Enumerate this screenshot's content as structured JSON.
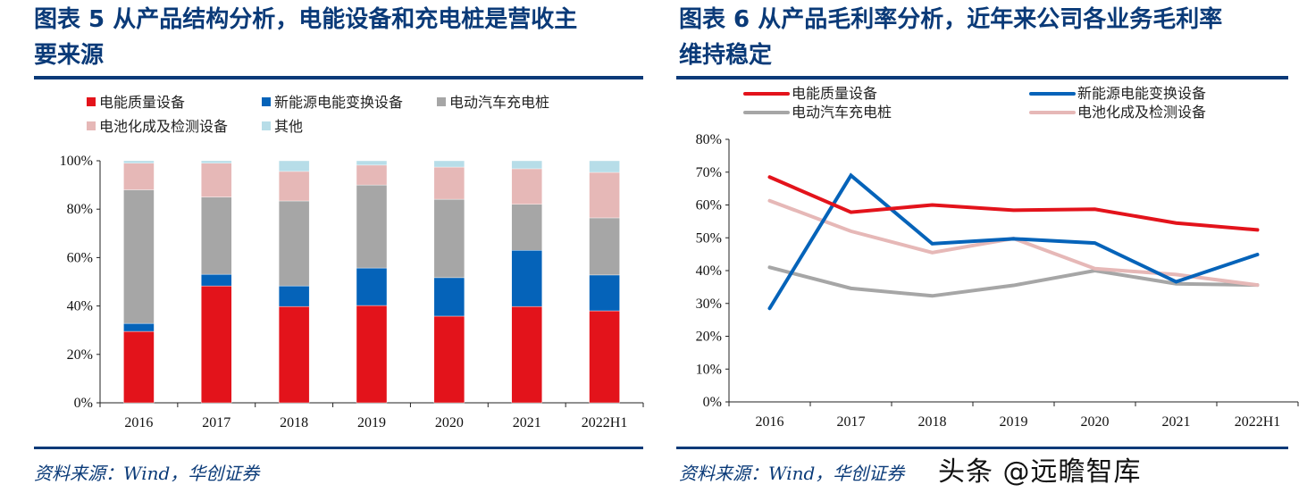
{
  "left": {
    "title_line1": "图表 5   从产品结构分析，电能设备和充电桩是营收主",
    "title_line2": "要来源",
    "source": "资料来源：Wind，华创证券"
  },
  "right": {
    "title_line1": "图表 6   从产品毛利率分析，近年来公司各业务毛利率",
    "title_line2": "维持稳定",
    "source": "资料来源：Wind，华创证券"
  },
  "watermark": "头条 @远瞻智库",
  "chart_data": [
    {
      "type": "bar",
      "stacked": true,
      "title": "从产品结构分析，电能设备和充电桩是营收主要来源",
      "categories": [
        "2016",
        "2017",
        "2018",
        "2019",
        "2020",
        "2021",
        "2022H1"
      ],
      "ylim": [
        0,
        100
      ],
      "yticks": [
        "0%",
        "20%",
        "40%",
        "60%",
        "80%",
        "100%"
      ],
      "legend_position": "top-left",
      "series": [
        {
          "name": "电能质量设备",
          "color": "#e3131b",
          "values": [
            29.5,
            48.3,
            39.8,
            40.2,
            35.8,
            39.8,
            38.0
          ]
        },
        {
          "name": "新能源电能变换设备",
          "color": "#0563b9",
          "values": [
            3.3,
            4.8,
            8.5,
            15.5,
            15.9,
            23.2,
            14.8
          ]
        },
        {
          "name": "电动汽车充电桩",
          "color": "#a6a6a6",
          "values": [
            55.2,
            31.9,
            35.1,
            34.3,
            32.4,
            19.0,
            23.6
          ]
        },
        {
          "name": "电池化成及检测设备",
          "color": "#e6b8b7",
          "values": [
            11.0,
            14.0,
            12.2,
            8.2,
            13.3,
            14.7,
            18.8
          ]
        },
        {
          "name": "其他",
          "color": "#b7dde8",
          "values": [
            1.0,
            1.0,
            4.4,
            1.8,
            2.6,
            3.3,
            4.8
          ]
        }
      ]
    },
    {
      "type": "line",
      "title": "从产品毛利率分析，近年来公司各业务毛利率维持稳定",
      "categories": [
        "2016",
        "2017",
        "2018",
        "2019",
        "2020",
        "2021",
        "2022H1"
      ],
      "ylim": [
        0,
        80
      ],
      "yticks": [
        "0%",
        "10%",
        "20%",
        "30%",
        "40%",
        "50%",
        "60%",
        "70%",
        "80%"
      ],
      "legend_position": "top",
      "series": [
        {
          "name": "电能质量设备",
          "color": "#e3131b",
          "values": [
            68.5,
            57.8,
            60.0,
            58.4,
            58.7,
            54.5,
            52.4
          ]
        },
        {
          "name": "新能源电能变换设备",
          "color": "#0563b9",
          "values": [
            28.5,
            69.0,
            48.2,
            49.7,
            48.4,
            36.6,
            44.9
          ]
        },
        {
          "name": "电动汽车充电桩",
          "color": "#a6a6a6",
          "values": [
            41.0,
            34.6,
            32.3,
            35.5,
            40.0,
            36.0,
            35.6
          ]
        },
        {
          "name": "电池化成及检测设备",
          "color": "#e6b8b7",
          "values": [
            61.3,
            52.0,
            45.5,
            49.8,
            40.6,
            38.8,
            35.6
          ]
        }
      ]
    }
  ]
}
